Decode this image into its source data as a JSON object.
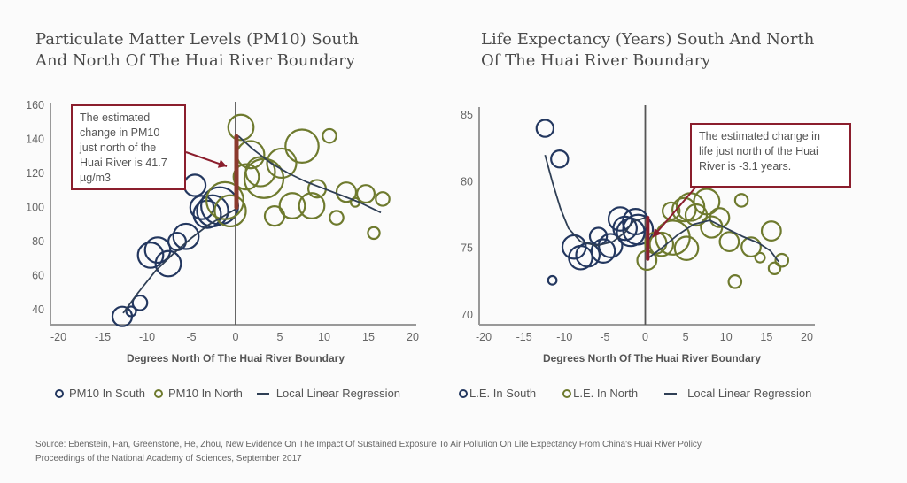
{
  "colors": {
    "south": "#23375f",
    "north": "#6e7a2e",
    "regression": "#2f3f55",
    "annotation": "#8b1e2d",
    "discontinuity": "#8b3a2e",
    "axis": "#999999",
    "boundary": "#555555"
  },
  "source": {
    "line1": "Source: Ebenstein, Fan, Greenstone, He, Zhou, New Evidence On The Impact Of Sustained Exposure To Air Pollution On Life Expectancy From China's Huai River Policy,",
    "line2": "Proceedings of the National Academy of Sciences, September 2017"
  },
  "chart_data": [
    {
      "type": "scatter",
      "title": "Particulate Matter Levels (PM10) South And North Of The Huai River Boundary",
      "xlabel": "Degrees North Of The Huai River Boundary",
      "ylabel": "",
      "xlim": [
        -20,
        20
      ],
      "ylim": [
        35,
        160
      ],
      "xticks": [
        -20,
        -15,
        -10,
        -5,
        0,
        5,
        10,
        15,
        20
      ],
      "yticks": [
        40,
        60,
        80,
        100,
        120,
        140,
        160
      ],
      "grid": false,
      "legend": {
        "placement": "bottom",
        "entries": [
          "PM10 In South",
          "PM10 In North",
          "Local Linear Regression"
        ]
      },
      "annotation": {
        "text": "The estimated change in PM10 just north of the Huai River is 41.7 µg/m3",
        "lines": [
          "The estimated",
          "change in PM10",
          "just north of the",
          "Huai River is 41.7",
          "µg/m3"
        ]
      },
      "discontinuity": {
        "x": 0,
        "y_from": 100,
        "y_to": 141.7
      },
      "series": [
        {
          "name": "PM10 In South",
          "points": [
            {
              "x": -12.8,
              "y": 36,
              "size": 1.0
            },
            {
              "x": -11.8,
              "y": 39,
              "size": 0.5
            },
            {
              "x": -10.8,
              "y": 44,
              "size": 0.75
            },
            {
              "x": -9.6,
              "y": 72,
              "size": 1.3
            },
            {
              "x": -8.8,
              "y": 75,
              "size": 1.3
            },
            {
              "x": -7.6,
              "y": 67,
              "size": 1.3
            },
            {
              "x": -6.6,
              "y": 80,
              "size": 0.9
            },
            {
              "x": -5.6,
              "y": 83,
              "size": 1.3
            },
            {
              "x": -4.6,
              "y": 113,
              "size": 1.1
            },
            {
              "x": -3.8,
              "y": 100,
              "size": 1.2
            },
            {
              "x": -3.2,
              "y": 96,
              "size": 1.4
            },
            {
              "x": -2.6,
              "y": 98,
              "size": 1.6
            },
            {
              "x": -1.8,
              "y": 101,
              "size": 1.9
            }
          ]
        },
        {
          "name": "PM10 In North",
          "points": [
            {
              "x": 0.6,
              "y": 147,
              "size": 1.3
            },
            {
              "x": -1.2,
              "y": 104,
              "size": 1.9
            },
            {
              "x": -0.6,
              "y": 98,
              "size": 1.6
            },
            {
              "x": 1.7,
              "y": 131,
              "size": 1.4
            },
            {
              "x": 1.2,
              "y": 118,
              "size": 1.3
            },
            {
              "x": 3.2,
              "y": 117,
              "size": 2.0
            },
            {
              "x": 2.8,
              "y": 121,
              "size": 1.5
            },
            {
              "x": 5.2,
              "y": 126,
              "size": 1.5
            },
            {
              "x": 7.5,
              "y": 136,
              "size": 1.7
            },
            {
              "x": 10.6,
              "y": 142,
              "size": 0.7
            },
            {
              "x": 4.4,
              "y": 95,
              "size": 1.0
            },
            {
              "x": 6.4,
              "y": 101,
              "size": 1.3
            },
            {
              "x": 8.6,
              "y": 101,
              "size": 1.3
            },
            {
              "x": 9.2,
              "y": 111,
              "size": 0.9
            },
            {
              "x": 11.4,
              "y": 94,
              "size": 0.7
            },
            {
              "x": 12.5,
              "y": 109,
              "size": 1.0
            },
            {
              "x": 13.5,
              "y": 103,
              "size": 0.45
            },
            {
              "x": 14.7,
              "y": 108,
              "size": 0.9
            },
            {
              "x": 16.6,
              "y": 105,
              "size": 0.7
            },
            {
              "x": 15.6,
              "y": 85,
              "size": 0.6
            }
          ]
        }
      ],
      "regression": {
        "south": [
          [
            -12.7,
            38
          ],
          [
            -11,
            50
          ],
          [
            -9,
            63
          ],
          [
            -7,
            73
          ],
          [
            -5,
            82
          ],
          [
            -3,
            90
          ],
          [
            -1,
            96
          ],
          [
            0,
            99
          ]
        ],
        "north": [
          [
            0.3,
            142
          ],
          [
            2,
            134
          ],
          [
            4,
            126
          ],
          [
            6,
            120
          ],
          [
            8,
            115
          ],
          [
            10,
            111
          ],
          [
            12,
            107
          ],
          [
            14,
            103
          ],
          [
            16.4,
            97
          ]
        ]
      }
    },
    {
      "type": "scatter",
      "title": "Life Expectancy (Years) South And North Of The Huai River Boundary",
      "xlabel": "Degrees North Of The Huai River Boundary",
      "ylabel": "",
      "xlim": [
        -20,
        20
      ],
      "ylim": [
        70,
        85
      ],
      "xticks": [
        -20,
        -15,
        -10,
        -5,
        0,
        5,
        10,
        15,
        20
      ],
      "yticks": [
        70,
        75,
        80,
        85
      ],
      "grid": false,
      "legend": {
        "placement": "bottom",
        "entries": [
          "L.E. In South",
          "L.E. In North",
          "Local Linear Regression"
        ]
      },
      "annotation": {
        "text": "The estimated change in life just north of the Huai River is -3.1 years.",
        "lines": [
          "The estimated change in",
          "life just north of the Huai",
          "River is -3.1 years."
        ]
      },
      "discontinuity": {
        "x": 0.2,
        "y_from": 77.3,
        "y_to": 74.2
      },
      "series": [
        {
          "name": "L.E. In South",
          "points": [
            {
              "x": -12.4,
              "y": 84.0,
              "size": 0.8
            },
            {
              "x": -10.6,
              "y": 81.7,
              "size": 0.8
            },
            {
              "x": -11.5,
              "y": 72.6,
              "size": 0.4
            },
            {
              "x": -8.8,
              "y": 75.1,
              "size": 1.1
            },
            {
              "x": -8.0,
              "y": 74.3,
              "size": 1.1
            },
            {
              "x": -7.1,
              "y": 74.5,
              "size": 1.1
            },
            {
              "x": -5.8,
              "y": 75.9,
              "size": 0.8
            },
            {
              "x": -5.2,
              "y": 74.8,
              "size": 1.1
            },
            {
              "x": -4.3,
              "y": 75.2,
              "size": 1.1
            },
            {
              "x": -3.1,
              "y": 77.2,
              "size": 1.1
            },
            {
              "x": -2.5,
              "y": 76.5,
              "size": 1.1
            },
            {
              "x": -1.8,
              "y": 76.2,
              "size": 1.3
            },
            {
              "x": -0.9,
              "y": 76.4,
              "size": 1.4
            },
            {
              "x": -1.2,
              "y": 77.0,
              "size": 1.2
            }
          ]
        },
        {
          "name": "L.E. In North",
          "points": [
            {
              "x": 0.2,
              "y": 74.1,
              "size": 0.9
            },
            {
              "x": 1.3,
              "y": 75.4,
              "size": 1.0
            },
            {
              "x": 2.0,
              "y": 75.3,
              "size": 1.1
            },
            {
              "x": 3.4,
              "y": 75.8,
              "size": 1.6
            },
            {
              "x": 5.1,
              "y": 75.0,
              "size": 1.1
            },
            {
              "x": 3.2,
              "y": 77.8,
              "size": 0.8
            },
            {
              "x": 4.8,
              "y": 77.9,
              "size": 1.1
            },
            {
              "x": 5.6,
              "y": 78.1,
              "size": 1.3
            },
            {
              "x": 6.3,
              "y": 77.5,
              "size": 1.0
            },
            {
              "x": 7.6,
              "y": 78.5,
              "size": 1.2
            },
            {
              "x": 9.2,
              "y": 77.3,
              "size": 0.9
            },
            {
              "x": 10.4,
              "y": 75.5,
              "size": 0.9
            },
            {
              "x": 11.1,
              "y": 72.5,
              "size": 0.6
            },
            {
              "x": 11.9,
              "y": 78.6,
              "size": 0.6
            },
            {
              "x": 13.1,
              "y": 75.1,
              "size": 0.9
            },
            {
              "x": 14.2,
              "y": 74.3,
              "size": 0.45
            },
            {
              "x": 15.6,
              "y": 76.3,
              "size": 0.9
            },
            {
              "x": 16.0,
              "y": 73.5,
              "size": 0.55
            },
            {
              "x": 16.9,
              "y": 74.1,
              "size": 0.6
            },
            {
              "x": 8.2,
              "y": 76.6,
              "size": 1.0
            }
          ]
        }
      ],
      "regression": {
        "south": [
          [
            -12.4,
            82
          ],
          [
            -11.5,
            80
          ],
          [
            -10.5,
            78
          ],
          [
            -9.5,
            76.5
          ],
          [
            -8,
            75.5
          ],
          [
            -6,
            75.2
          ],
          [
            -4,
            75.5
          ],
          [
            -2.5,
            76.2
          ],
          [
            -1.5,
            77
          ],
          [
            0,
            77.3
          ]
        ],
        "north": [
          [
            0.2,
            74.2
          ],
          [
            2,
            75
          ],
          [
            4,
            76
          ],
          [
            6,
            76.8
          ],
          [
            8,
            77.1
          ],
          [
            10,
            76.5
          ],
          [
            12,
            75.9
          ],
          [
            14,
            75.4
          ],
          [
            15.5,
            74.8
          ],
          [
            16.5,
            74
          ]
        ]
      }
    }
  ],
  "legend_labels": {
    "c1_south": "PM10 In South",
    "c1_north": "PM10 In North",
    "c1_reg": "Local Linear Regression",
    "c2_south": "L.E. In South",
    "c2_north": "L.E. In North",
    "c2_reg": "Local Linear Regression"
  },
  "titles": {
    "chart1": "Particulate Matter Levels (PM10) South And North Of The Huai River Boundary",
    "chart2": "Life Expectancy (Years) South And North Of The Huai River Boundary"
  }
}
